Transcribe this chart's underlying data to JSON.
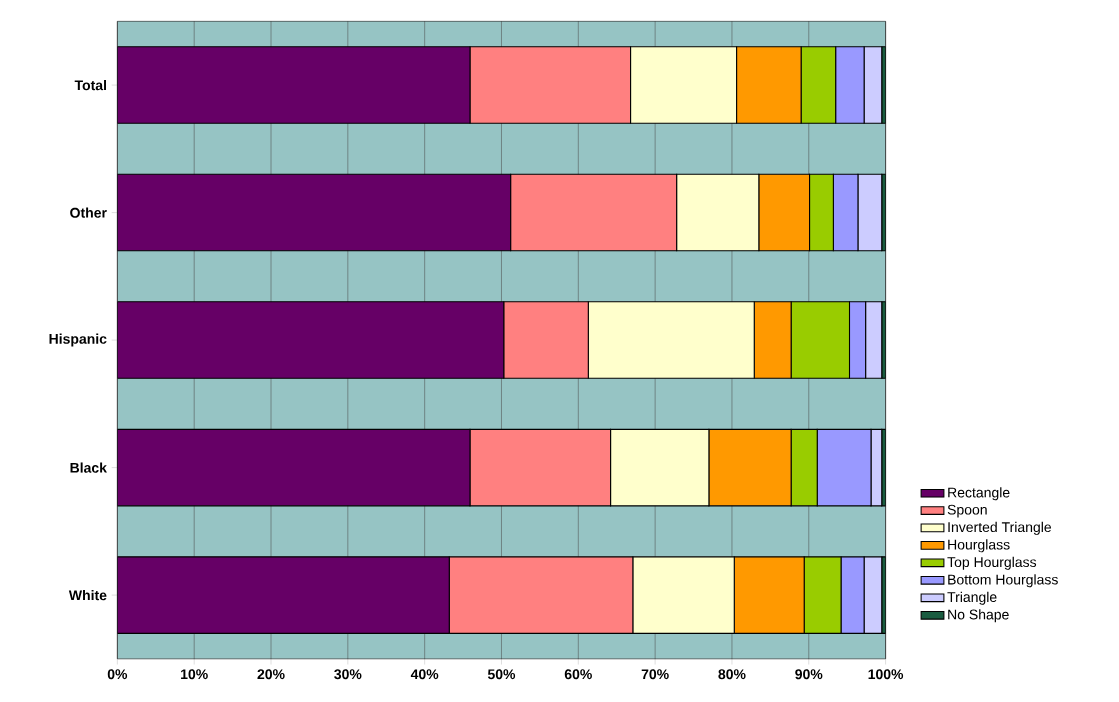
{
  "chart_data": {
    "type": "bar",
    "orientation": "horizontal",
    "stacked": true,
    "categories": [
      "Total",
      "Other",
      "Hispanic",
      "Black",
      "White"
    ],
    "series": [
      {
        "name": "Rectangle",
        "color": "#660066",
        "values": [
          45.9,
          51.2,
          50.3,
          45.9,
          43.2
        ]
      },
      {
        "name": "Spoon",
        "color": "#ff8080",
        "values": [
          20.9,
          21.6,
          11.0,
          18.3,
          23.9
        ]
      },
      {
        "name": "Inverted Triangle",
        "color": "#ffffcc",
        "values": [
          13.8,
          10.7,
          21.6,
          12.8,
          13.2
        ]
      },
      {
        "name": "Hourglass",
        "color": "#ff9900",
        "values": [
          8.4,
          6.6,
          4.8,
          10.7,
          9.1
        ]
      },
      {
        "name": "Top Hourglass",
        "color": "#99cc00",
        "values": [
          4.5,
          3.1,
          7.6,
          3.4,
          4.8
        ]
      },
      {
        "name": "Bottom Hourglass",
        "color": "#9999ff",
        "values": [
          3.7,
          3.2,
          2.1,
          7.0,
          3.0
        ]
      },
      {
        "name": "Triangle",
        "color": "#ccccff",
        "values": [
          2.3,
          3.1,
          2.1,
          1.4,
          2.3
        ]
      },
      {
        "name": "No Shape",
        "color": "#1a5c40",
        "values": [
          0.5,
          0.5,
          0.5,
          0.5,
          0.5
        ]
      }
    ],
    "xlim": [
      0,
      100
    ],
    "xticks": [
      {
        "value": 0,
        "label": "0%"
      },
      {
        "value": 10,
        "label": "10%"
      },
      {
        "value": 20,
        "label": "20%"
      },
      {
        "value": 30,
        "label": "30%"
      },
      {
        "value": 40,
        "label": "40%"
      },
      {
        "value": 50,
        "label": "50%"
      },
      {
        "value": 60,
        "label": "60%"
      },
      {
        "value": 70,
        "label": "70%"
      },
      {
        "value": 80,
        "label": "80%"
      },
      {
        "value": 90,
        "label": "90%"
      },
      {
        "value": 100,
        "label": "100%"
      }
    ],
    "grid": "x",
    "legend": "right"
  }
}
